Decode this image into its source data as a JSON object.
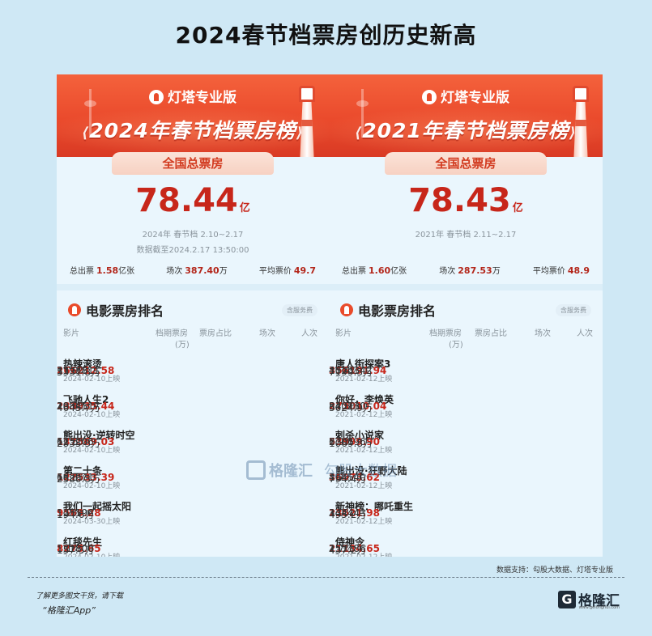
{
  "title": "2024春节档票房创历史新高",
  "panels": [
    {
      "brand": "灯塔专业版",
      "banner_title": "2024年春节档票房榜",
      "banner_deco_left": "⟨",
      "banner_deco_right": "⟩",
      "tab": "全国总票房",
      "total": "78.44",
      "total_unit": "亿",
      "period": "2024年 春节档 2.10~2.17",
      "cutoff": "数据截至2024.2.17 13:50:00",
      "stats": {
        "tickets_label": "总出票",
        "tickets_value": "1.58",
        "tickets_unit": "亿张",
        "shows_label": "场次",
        "shows_value": "387.40",
        "shows_unit": "万",
        "avg_label": "平均票价",
        "avg_value": "49.7"
      },
      "rank_title": "电影票房排名",
      "service_tag": "含服务费",
      "columns": {
        "film": "影片",
        "box": "档期票房",
        "box_unit": "(万)",
        "share": "票房占比",
        "shows": "场次",
        "viewers": "人次"
      },
      "rows": [
        {
          "name": "热辣滚烫",
          "date": "2024-02-10上映",
          "box": "266212.58",
          "share": "33.9%",
          "shows": "1193811",
          "viewers": "5331.8万"
        },
        {
          "name": "飞驰人生2",
          "date": "2024-02-10上映",
          "box": "233935.44",
          "share": "29.8%",
          "shows": "1084517",
          "viewers": "4645.7万"
        },
        {
          "name": "熊出没·逆转时空",
          "date": "2024-02-10上映",
          "box": "137569.03",
          "share": "17.5%",
          "shows": "615206",
          "viewers": "2835.3万"
        },
        {
          "name": "第二十条",
          "date": "2024-02-10上映",
          "box": "127533.39",
          "share": "16.3%",
          "shows": "682971",
          "viewers": "2580.3万"
        },
        {
          "name": "我们一起摇太阳",
          "date": "2024-03-30上映",
          "box": "9569.28",
          "share": "1.2%",
          "shows": "125196",
          "viewers": "194.6万"
        },
        {
          "name": "红毯先生",
          "date": "2024-02-10上映",
          "box": "8275.65",
          "share": "1.1%",
          "shows": "131800",
          "viewers": "157.5万"
        }
      ]
    },
    {
      "brand": "灯塔专业版",
      "banner_title": "2021年春节档票房榜",
      "banner_deco_left": "⟨",
      "banner_deco_right": "⟩",
      "tab": "全国总票房",
      "total": "78.43",
      "total_unit": "亿",
      "period": "2021年 春节档 2.11~2.17",
      "cutoff": "",
      "stats": {
        "tickets_label": "总出票",
        "tickets_value": "1.60",
        "tickets_unit": "亿张",
        "shows_label": "场次",
        "shows_value": "287.53",
        "shows_unit": "万",
        "avg_label": "平均票价",
        "avg_value": "48.9"
      },
      "rank_title": "电影票房排名",
      "service_tag": "含服务费",
      "columns": {
        "film": "影片",
        "box": "档期票房",
        "box_unit": "(万)",
        "share": "票房占比",
        "shows": "场次",
        "viewers": "人次"
      },
      "rows": [
        {
          "name": "唐人街探案3",
          "date": "2021-02-12上映",
          "box": "356191.94",
          "share": "45.4%",
          "shows": "1023342",
          "viewers": "7199.3万"
        },
        {
          "name": "你好，李焕英",
          "date": "2021-02-12上映",
          "box": "273010.04",
          "share": "34.8%",
          "shows": "830130",
          "viewers": "5624.9万"
        },
        {
          "name": "刺杀小说家",
          "date": "2021-02-12上映",
          "box": "53999.90",
          "share": "6.9%",
          "shows": "270396",
          "viewers": "1069.8万"
        },
        {
          "name": "熊出没·狂野大陆",
          "date": "2021-02-12上映",
          "box": "36973.62",
          "share": "4.7%",
          "shows": "194540",
          "viewers": "794.4万"
        },
        {
          "name": "新神榜：哪吒重生",
          "date": "2021-02-12上映",
          "box": "23521.98",
          "share": "3.0%",
          "shows": "144443",
          "viewers": "495.2万"
        },
        {
          "name": "侍神令",
          "date": "2021-02-12上映",
          "box": "21134.65",
          "share": "2.7%",
          "shows": "153186",
          "viewers": "437.2万"
        }
      ]
    }
  ],
  "source": "数据支持：勾股大数据、灯塔专业版",
  "footer": {
    "line1": "了解更多图文干货，请下载",
    "line2": "“格隆汇App”",
    "brand_glyph": "G",
    "brand_name": "格隆汇",
    "brand_url": "www.gelonghui.com"
  },
  "watermark": {
    "text1": "格隆汇",
    "text2": "勾股大数据"
  }
}
